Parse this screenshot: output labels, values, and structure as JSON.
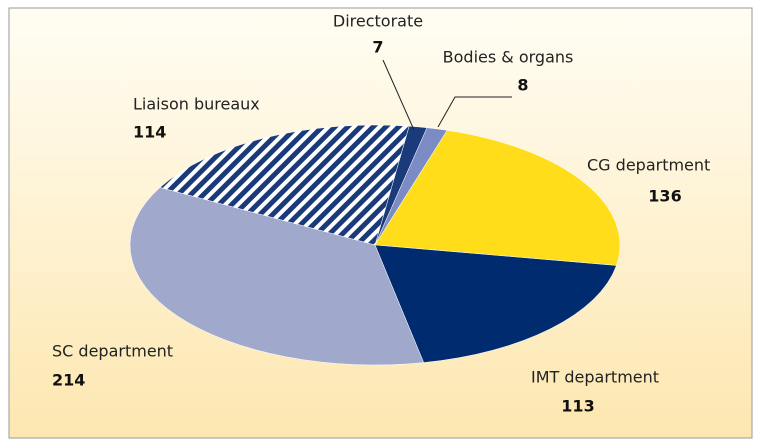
{
  "chart_data": {
    "type": "pie",
    "categories": [
      "Directorate",
      "Bodies & organs",
      "CG department",
      "IMT department",
      "SC department",
      "Liaison bureaux"
    ],
    "values": [
      7,
      8,
      136,
      113,
      214,
      114
    ],
    "colors": [
      "#1a3a7a",
      "#7b8cc4",
      "#ffdd1a",
      "#002b6e",
      "#a0a8cc",
      "#1a3a7a"
    ],
    "hatched": "Liaison bureaux"
  }
}
